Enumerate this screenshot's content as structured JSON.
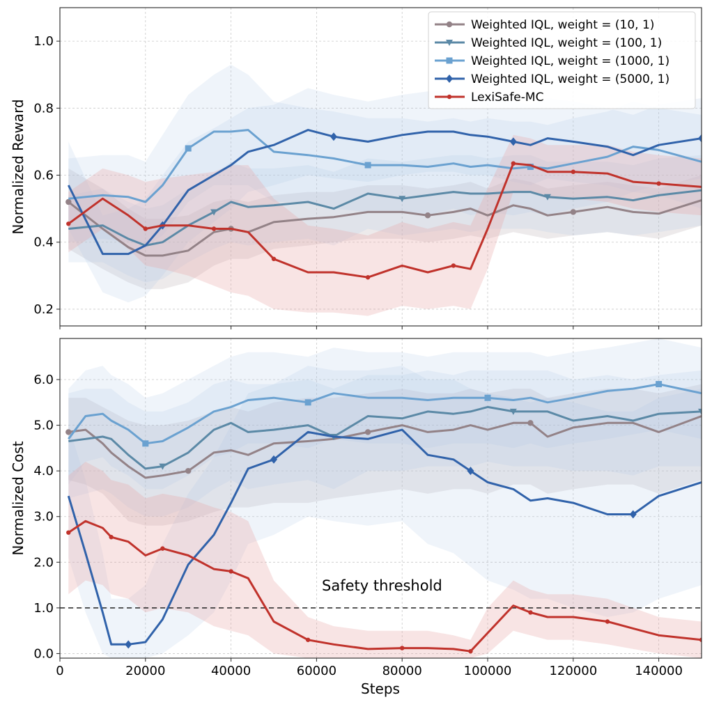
{
  "figure": {
    "xlabel": "Steps",
    "threshold_label": "Safety threshold"
  },
  "colors": {
    "w10": "#938287",
    "w100": "#5b89a6",
    "w1000": "#6aa1d0",
    "w5000": "#3062aa",
    "lexi": "#c0322b",
    "band_blue": "#aec8e8",
    "band_grey": "#bfb4b8",
    "band_red": "#e9a7a6"
  },
  "chart_data": [
    {
      "type": "line",
      "id": "reward",
      "ylabel": "Normalized Reward",
      "xlim": [
        0,
        150000
      ],
      "ylim": [
        0.15,
        1.1
      ],
      "xticks": [
        0,
        20000,
        40000,
        60000,
        80000,
        100000,
        120000,
        140000
      ],
      "yticks": [
        0.2,
        0.4,
        0.6,
        0.8,
        1.0
      ],
      "ytick_labels": [
        "0.2",
        "0.4",
        "0.6",
        "0.8",
        "1.0"
      ],
      "grid": true,
      "legend": "top-right",
      "x": [
        2000,
        10000,
        16000,
        20000,
        24000,
        30000,
        36000,
        40000,
        44000,
        50000,
        58000,
        64000,
        72000,
        80000,
        86000,
        92000,
        96000,
        100000,
        106000,
        110000,
        114000,
        120000,
        128000,
        134000,
        140000,
        150000
      ],
      "series": [
        {
          "name": "Weighted IQL, weight = (10, 1)",
          "key": "w10",
          "marker": "circle",
          "values": [
            0.52,
            0.44,
            0.385,
            0.36,
            0.36,
            0.375,
            0.43,
            0.44,
            0.43,
            0.46,
            0.47,
            0.475,
            0.49,
            0.49,
            0.48,
            0.49,
            0.5,
            0.48,
            0.51,
            0.5,
            0.48,
            0.49,
            0.505,
            0.49,
            0.485,
            0.525
          ],
          "lower": [
            0.38,
            0.32,
            0.28,
            0.26,
            0.26,
            0.28,
            0.33,
            0.35,
            0.35,
            0.38,
            0.39,
            0.4,
            0.41,
            0.41,
            0.4,
            0.41,
            0.42,
            0.41,
            0.43,
            0.42,
            0.41,
            0.42,
            0.43,
            0.42,
            0.41,
            0.45
          ],
          "upper": [
            0.62,
            0.56,
            0.5,
            0.47,
            0.47,
            0.48,
            0.52,
            0.53,
            0.52,
            0.54,
            0.55,
            0.55,
            0.57,
            0.57,
            0.56,
            0.57,
            0.58,
            0.56,
            0.59,
            0.58,
            0.56,
            0.57,
            0.58,
            0.57,
            0.56,
            0.6
          ]
        },
        {
          "name": "Weighted IQL, weight = (100, 1)",
          "key": "w100",
          "marker": "triangle",
          "values": [
            0.44,
            0.45,
            0.41,
            0.39,
            0.4,
            0.45,
            0.49,
            0.52,
            0.505,
            0.51,
            0.52,
            0.5,
            0.545,
            0.53,
            0.54,
            0.55,
            0.545,
            0.545,
            0.55,
            0.55,
            0.535,
            0.53,
            0.535,
            0.525,
            0.54,
            0.555
          ],
          "lower": [
            0.34,
            0.34,
            0.3,
            0.28,
            0.29,
            0.34,
            0.38,
            0.4,
            0.39,
            0.4,
            0.41,
            0.39,
            0.44,
            0.42,
            0.43,
            0.44,
            0.43,
            0.44,
            0.44,
            0.44,
            0.43,
            0.42,
            0.43,
            0.42,
            0.43,
            0.45
          ],
          "upper": [
            0.54,
            0.56,
            0.52,
            0.5,
            0.51,
            0.56,
            0.6,
            0.64,
            0.62,
            0.62,
            0.63,
            0.61,
            0.65,
            0.64,
            0.65,
            0.66,
            0.66,
            0.65,
            0.66,
            0.66,
            0.64,
            0.64,
            0.64,
            0.63,
            0.65,
            0.66
          ]
        },
        {
          "name": "Weighted IQL, weight = (1000, 1)",
          "key": "w1000",
          "marker": "square",
          "values": [
            0.53,
            0.54,
            0.535,
            0.52,
            0.57,
            0.68,
            0.73,
            0.73,
            0.735,
            0.67,
            0.66,
            0.65,
            0.63,
            0.63,
            0.625,
            0.635,
            0.625,
            0.63,
            0.62,
            0.625,
            0.62,
            0.635,
            0.655,
            0.685,
            0.675,
            0.64
          ],
          "lower": [
            0.4,
            0.41,
            0.4,
            0.39,
            0.42,
            0.52,
            0.57,
            0.57,
            0.57,
            0.52,
            0.52,
            0.5,
            0.49,
            0.49,
            0.48,
            0.5,
            0.48,
            0.49,
            0.48,
            0.49,
            0.48,
            0.5,
            0.52,
            0.55,
            0.54,
            0.5
          ],
          "upper": [
            0.65,
            0.66,
            0.66,
            0.64,
            0.72,
            0.84,
            0.9,
            0.93,
            0.9,
            0.82,
            0.8,
            0.79,
            0.77,
            0.77,
            0.76,
            0.77,
            0.76,
            0.77,
            0.76,
            0.76,
            0.75,
            0.77,
            0.79,
            0.82,
            0.8,
            0.78
          ]
        },
        {
          "name": "Weighted IQL, weight = (5000, 1)",
          "key": "w5000",
          "marker": "diamond",
          "values": [
            0.57,
            0.365,
            0.365,
            0.39,
            0.45,
            0.555,
            0.6,
            0.63,
            0.67,
            0.69,
            0.735,
            0.715,
            0.7,
            0.72,
            0.73,
            0.73,
            0.72,
            0.715,
            0.7,
            0.69,
            0.71,
            0.7,
            0.685,
            0.66,
            0.69,
            0.71
          ],
          "lower": [
            0.44,
            0.25,
            0.22,
            0.24,
            0.3,
            0.4,
            0.46,
            0.5,
            0.55,
            0.57,
            0.6,
            0.59,
            0.58,
            0.6,
            0.61,
            0.61,
            0.6,
            0.6,
            0.58,
            0.57,
            0.59,
            0.58,
            0.57,
            0.55,
            0.57,
            0.59
          ],
          "upper": [
            0.7,
            0.48,
            0.5,
            0.53,
            0.6,
            0.7,
            0.74,
            0.77,
            0.8,
            0.81,
            0.86,
            0.84,
            0.82,
            0.84,
            0.85,
            0.85,
            0.84,
            0.83,
            0.82,
            0.81,
            0.83,
            0.82,
            0.8,
            0.78,
            0.81,
            0.83
          ]
        },
        {
          "name": "LexiSafe-MC",
          "key": "lexi",
          "marker": "dot",
          "values": [
            0.455,
            0.53,
            0.48,
            0.44,
            0.45,
            0.45,
            0.44,
            0.44,
            0.43,
            0.35,
            0.31,
            0.31,
            0.295,
            0.33,
            0.31,
            0.33,
            0.32,
            0.44,
            0.635,
            0.63,
            0.61,
            0.61,
            0.605,
            0.58,
            0.575,
            0.565
          ],
          "lower": [
            0.37,
            0.44,
            0.38,
            0.33,
            0.32,
            0.3,
            0.27,
            0.25,
            0.24,
            0.2,
            0.19,
            0.19,
            0.18,
            0.21,
            0.2,
            0.21,
            0.2,
            0.32,
            0.55,
            0.55,
            0.53,
            0.53,
            0.52,
            0.5,
            0.49,
            0.48
          ],
          "upper": [
            0.55,
            0.62,
            0.6,
            0.58,
            0.59,
            0.6,
            0.61,
            0.63,
            0.63,
            0.53,
            0.45,
            0.44,
            0.42,
            0.46,
            0.44,
            0.46,
            0.45,
            0.56,
            0.72,
            0.71,
            0.69,
            0.69,
            0.69,
            0.67,
            0.66,
            0.65
          ]
        }
      ]
    },
    {
      "type": "line",
      "id": "cost",
      "ylabel": "Normalized Cost",
      "xlabel": "Steps",
      "xlim": [
        0,
        150000
      ],
      "ylim": [
        -0.1,
        6.9
      ],
      "xticks": [
        0,
        20000,
        40000,
        60000,
        80000,
        100000,
        120000,
        140000
      ],
      "xtick_labels": [
        "0",
        "20000",
        "40000",
        "60000",
        "80000",
        "100000",
        "120000",
        "140000"
      ],
      "yticks": [
        0,
        1,
        2,
        3,
        4,
        5,
        6
      ],
      "ytick_labels": [
        "0.0",
        "1.0",
        "2.0",
        "3.0",
        "4.0",
        "5.0",
        "6.0"
      ],
      "grid": true,
      "threshold": 1.0,
      "x": [
        2000,
        6000,
        10000,
        12000,
        16000,
        20000,
        24000,
        30000,
        36000,
        40000,
        44000,
        50000,
        58000,
        64000,
        72000,
        80000,
        86000,
        92000,
        96000,
        100000,
        106000,
        110000,
        114000,
        120000,
        128000,
        134000,
        140000,
        150000
      ],
      "series": [
        {
          "name": "Weighted IQL, weight = (10, 1)",
          "key": "w10",
          "marker": "circle",
          "values": [
            4.85,
            4.9,
            4.6,
            4.4,
            4.1,
            3.85,
            3.9,
            4.0,
            4.4,
            4.45,
            4.35,
            4.6,
            4.65,
            4.7,
            4.85,
            5.0,
            4.85,
            4.9,
            5.0,
            4.9,
            5.05,
            5.05,
            4.75,
            4.95,
            5.05,
            5.05,
            4.85,
            5.2
          ],
          "lower": [
            3.8,
            3.7,
            3.5,
            3.3,
            2.9,
            2.8,
            2.8,
            2.9,
            3.1,
            3.2,
            3.2,
            3.3,
            3.3,
            3.4,
            3.5,
            3.6,
            3.5,
            3.6,
            3.6,
            3.5,
            3.7,
            3.7,
            3.5,
            3.6,
            3.7,
            3.7,
            3.5,
            3.8
          ],
          "upper": [
            5.6,
            5.6,
            5.4,
            5.3,
            5.1,
            5.0,
            5.0,
            5.1,
            5.3,
            5.4,
            5.3,
            5.5,
            5.6,
            5.6,
            5.7,
            5.8,
            5.7,
            5.7,
            5.8,
            5.7,
            5.8,
            5.8,
            5.6,
            5.7,
            5.8,
            5.8,
            5.7,
            5.9
          ]
        },
        {
          "name": "Weighted IQL, weight = (100, 1)",
          "key": "w100",
          "marker": "triangle",
          "values": [
            4.65,
            4.7,
            4.75,
            4.7,
            4.35,
            4.05,
            4.1,
            4.4,
            4.9,
            5.05,
            4.85,
            4.9,
            5.0,
            4.75,
            5.2,
            5.15,
            5.3,
            5.25,
            5.3,
            5.4,
            5.3,
            5.3,
            5.3,
            5.1,
            5.2,
            5.1,
            5.25,
            5.3
          ],
          "lower": [
            3.4,
            3.5,
            3.6,
            3.5,
            3.2,
            3.0,
            3.0,
            3.2,
            3.6,
            3.8,
            3.6,
            3.7,
            3.8,
            3.6,
            4.0,
            4.0,
            4.1,
            4.1,
            4.1,
            4.2,
            4.1,
            4.1,
            4.1,
            4.0,
            4.0,
            3.9,
            4.1,
            4.1
          ],
          "upper": [
            5.7,
            5.8,
            5.8,
            5.8,
            5.5,
            5.3,
            5.3,
            5.5,
            5.9,
            6.0,
            5.9,
            5.9,
            6.0,
            5.8,
            6.1,
            6.1,
            6.2,
            6.1,
            6.2,
            6.2,
            6.2,
            6.2,
            6.2,
            6.0,
            6.1,
            6.0,
            6.1,
            6.2
          ]
        },
        {
          "name": "Weighted IQL, weight = (1000, 1)",
          "key": "w1000",
          "marker": "square",
          "values": [
            4.7,
            5.2,
            5.25,
            5.1,
            4.9,
            4.6,
            4.65,
            4.95,
            5.3,
            5.4,
            5.55,
            5.6,
            5.5,
            5.7,
            5.6,
            5.6,
            5.55,
            5.6,
            5.6,
            5.6,
            5.55,
            5.6,
            5.5,
            5.6,
            5.75,
            5.8,
            5.9,
            5.7
          ],
          "lower": [
            3.7,
            4.2,
            4.3,
            4.1,
            3.9,
            3.6,
            3.6,
            3.9,
            4.3,
            4.4,
            4.6,
            4.6,
            4.5,
            4.7,
            4.6,
            4.6,
            4.5,
            4.6,
            4.6,
            4.6,
            4.5,
            4.6,
            4.5,
            4.6,
            4.7,
            4.8,
            4.9,
            4.7
          ],
          "upper": [
            5.8,
            6.2,
            6.3,
            6.1,
            5.9,
            5.6,
            5.7,
            6.0,
            6.3,
            6.5,
            6.6,
            6.6,
            6.5,
            6.7,
            6.6,
            6.6,
            6.5,
            6.6,
            6.6,
            6.6,
            6.6,
            6.6,
            6.5,
            6.6,
            6.7,
            6.8,
            6.9,
            6.7
          ]
        },
        {
          "name": "Weighted IQL, weight = (5000, 1)",
          "key": "w5000",
          "marker": "diamond",
          "values": [
            3.45,
            2.2,
            0.9,
            0.2,
            0.2,
            0.25,
            0.75,
            1.95,
            2.6,
            3.3,
            4.05,
            4.25,
            4.85,
            4.75,
            4.7,
            4.9,
            4.35,
            4.25,
            4.0,
            3.75,
            3.6,
            3.35,
            3.4,
            3.3,
            3.05,
            3.05,
            3.45,
            3.75
          ],
          "lower": [
            2.1,
            0.9,
            0.0,
            -0.1,
            -0.1,
            -0.1,
            0.0,
            0.4,
            0.9,
            1.6,
            2.4,
            2.6,
            3.0,
            2.9,
            2.8,
            2.9,
            2.4,
            2.2,
            1.9,
            1.6,
            1.4,
            1.2,
            1.2,
            1.0,
            0.8,
            0.9,
            1.2,
            1.5
          ],
          "upper": [
            5.0,
            3.8,
            2.2,
            1.2,
            1.2,
            1.5,
            2.4,
            3.5,
            4.3,
            5.0,
            5.7,
            5.9,
            6.3,
            6.2,
            6.2,
            6.3,
            6.0,
            6.0,
            5.8,
            5.7,
            5.6,
            5.5,
            5.6,
            5.5,
            5.3,
            5.3,
            5.6,
            5.8
          ]
        },
        {
          "name": "LexiSafe-MC",
          "key": "lexi",
          "marker": "dot",
          "values": [
            2.65,
            2.9,
            2.75,
            2.55,
            2.45,
            2.15,
            2.3,
            2.15,
            1.85,
            1.8,
            1.65,
            0.7,
            0.3,
            0.2,
            0.1,
            0.12,
            0.12,
            0.1,
            0.05,
            0.45,
            1.05,
            0.9,
            0.8,
            0.8,
            0.7,
            0.55,
            0.4,
            0.3
          ],
          "lower": [
            1.3,
            1.6,
            1.5,
            1.3,
            1.2,
            0.9,
            1.0,
            0.9,
            0.6,
            0.5,
            0.4,
            0.0,
            -0.1,
            -0.1,
            -0.1,
            -0.1,
            -0.1,
            -0.1,
            -0.1,
            0.0,
            0.5,
            0.4,
            0.3,
            0.3,
            0.2,
            0.1,
            0.0,
            -0.1
          ],
          "upper": [
            3.9,
            4.2,
            4.0,
            3.8,
            3.7,
            3.4,
            3.5,
            3.4,
            3.2,
            3.1,
            2.9,
            1.6,
            0.8,
            0.6,
            0.5,
            0.5,
            0.5,
            0.4,
            0.3,
            1.0,
            1.6,
            1.4,
            1.3,
            1.3,
            1.2,
            1.0,
            0.8,
            0.7
          ]
        }
      ]
    }
  ]
}
